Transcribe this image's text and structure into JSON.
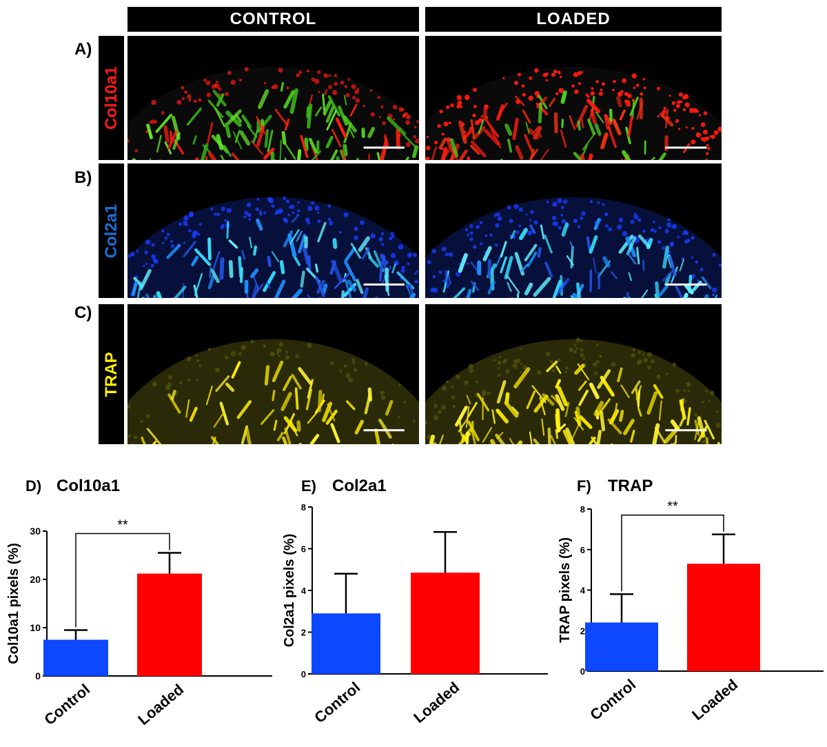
{
  "columns": [
    "CONTROL",
    "LOADED"
  ],
  "rows": [
    {
      "letter": "A)",
      "stain": "Col10a1",
      "stain_color": "#ff1a1a"
    },
    {
      "letter": "B)",
      "stain": "Col2a1",
      "stain_color": "#1a6fd6"
    },
    {
      "letter": "C)",
      "stain": "TRAP",
      "stain_color": "#ffee00"
    }
  ],
  "chart_data": [
    {
      "type": "bar",
      "panel_letter": "D)",
      "title": "Col10a1",
      "ylabel": "Col10a1 pixels (%)",
      "categories": [
        "Control",
        "Loaded"
      ],
      "values": [
        7.5,
        21.2
      ],
      "errors": [
        2.0,
        4.3
      ],
      "colors": [
        "#0d47ff",
        "#ff0000"
      ],
      "ylim": [
        0,
        30
      ],
      "yticks": [
        "0",
        "10",
        "20",
        "30"
      ],
      "significance": "**"
    },
    {
      "type": "bar",
      "panel_letter": "E)",
      "title": "Col2a1",
      "ylabel": "Col2a1 pixels (%)",
      "categories": [
        "Control",
        "Loaded"
      ],
      "values": [
        2.9,
        4.85
      ],
      "errors": [
        1.9,
        1.95
      ],
      "colors": [
        "#0d47ff",
        "#ff0000"
      ],
      "ylim": [
        0,
        8
      ],
      "yticks": [
        "0",
        "2",
        "4",
        "6",
        "8"
      ],
      "significance": ""
    },
    {
      "type": "bar",
      "panel_letter": "F)",
      "title": "TRAP",
      "ylabel": "TRAP pixels (%)",
      "categories": [
        "Control",
        "Loaded"
      ],
      "values": [
        2.4,
        5.3
      ],
      "errors": [
        1.4,
        1.45
      ],
      "colors": [
        "#0d47ff",
        "#ff0000"
      ],
      "ylim": [
        0,
        8
      ],
      "yticks": [
        "0",
        "2",
        "4",
        "6",
        "8"
      ],
      "significance": "**"
    }
  ]
}
